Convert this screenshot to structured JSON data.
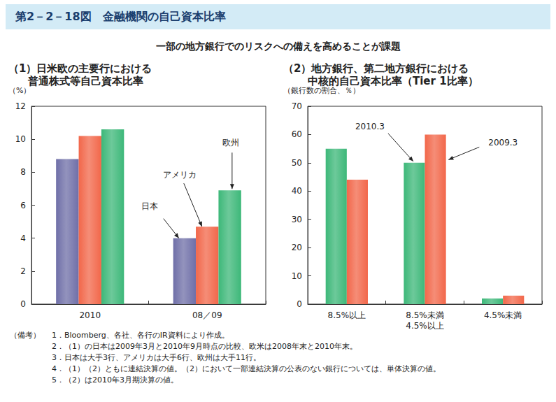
{
  "header": {
    "title": "第2－2－18図　金融機関の自己資本比率",
    "subtitle": "一部の地方銀行でのリスクへの備えを高めることが課題"
  },
  "chart_data": [
    {
      "type": "bar",
      "title": "（1）日米欧の主要行における",
      "subtitle": "普通株式等自己資本比率",
      "y_label": "（%）",
      "categories": [
        "2010",
        "08／09"
      ],
      "series": [
        {
          "name": "日本",
          "color": "#6f6fa8",
          "values": [
            8.8,
            4.0
          ]
        },
        {
          "name": "アメリカ",
          "color": "#f2674a",
          "values": [
            10.2,
            4.7
          ]
        },
        {
          "name": "欧州",
          "color": "#3db879",
          "values": [
            10.6,
            6.9
          ]
        }
      ],
      "ylim": [
        0,
        12
      ],
      "yticks": [
        0,
        2,
        4,
        6,
        8,
        10,
        12
      ],
      "grid": false
    },
    {
      "type": "bar",
      "title": "（2）地方銀行、第二地方銀行における",
      "subtitle": "中核的自己資本比率（Tier 1比率）",
      "y_label": "（銀行数の割合、％）",
      "categories": [
        "8.5%以上",
        "8.5%未満\n4.5%以上",
        "4.5%未満"
      ],
      "series": [
        {
          "name": "2010.3",
          "color": "#3db879",
          "values": [
            55,
            50,
            2
          ]
        },
        {
          "name": "2009.3",
          "color": "#f2674a",
          "values": [
            44,
            60,
            3
          ]
        }
      ],
      "ylim": [
        0,
        70
      ],
      "yticks": [
        0,
        10,
        20,
        30,
        40,
        50,
        60,
        70
      ],
      "grid": false
    }
  ],
  "notes": {
    "label": "（備考）",
    "items": [
      "1．Bloomberg、各社、各行のIR資料により作成。",
      "2．（1）の日本は2009年3月と2010年9月時点の比較、欧米は2008年末と2010年末。",
      "3．日本は大手3行、アメリカは大手6行、欧州は大手11行。",
      "4．（1）（2）ともに連結決算の値。（2）において一部連結決算の公表のない銀行については、単体決算の値。",
      "5．（2）は2010年3月期決算の値。"
    ]
  }
}
